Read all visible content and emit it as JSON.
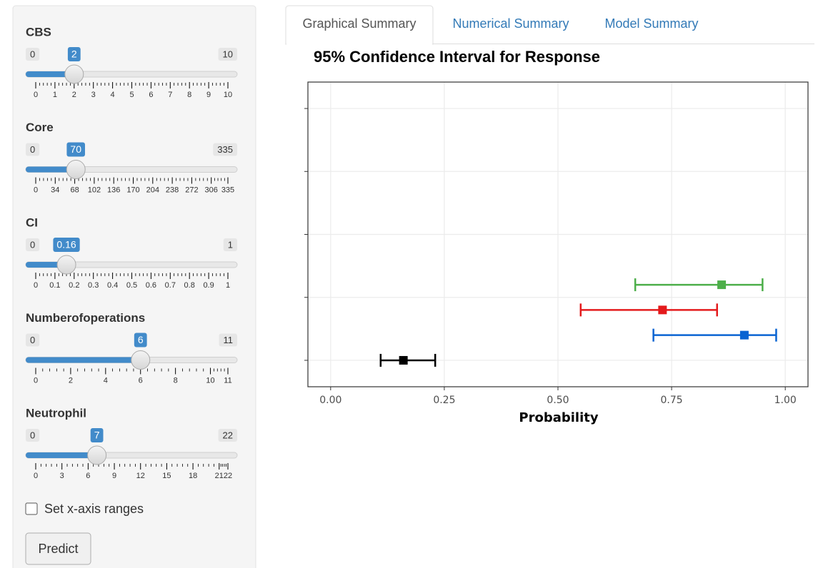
{
  "sidebar": {
    "sliders": [
      {
        "label": "CBS",
        "min": 0,
        "max": 10,
        "value": 2,
        "ticks": [
          0,
          1,
          2,
          3,
          4,
          5,
          6,
          7,
          8,
          9,
          10
        ]
      },
      {
        "label": "Core",
        "min": 0,
        "max": 335,
        "value": 70,
        "ticks": [
          0,
          34,
          68,
          102,
          136,
          170,
          204,
          238,
          272,
          306,
          335
        ]
      },
      {
        "label": "CI",
        "min": 0,
        "max": 1,
        "value": 0.16,
        "ticks": [
          0,
          0.1,
          0.2,
          0.3,
          0.4,
          0.5,
          0.6,
          0.7,
          0.8,
          0.9,
          1
        ]
      },
      {
        "label": "Numberofoperations",
        "min": 0,
        "max": 11,
        "value": 6,
        "ticks": [
          0,
          2,
          4,
          6,
          8,
          10,
          11
        ]
      },
      {
        "label": "Neutrophil",
        "min": 0,
        "max": 22,
        "value": 7,
        "ticks": [
          0,
          3,
          6,
          9,
          12,
          15,
          18,
          21,
          22
        ]
      }
    ],
    "checkbox": "Set x-axis ranges",
    "button": "Predict"
  },
  "tabs": [
    "Graphical Summary",
    "Numerical Summary",
    "Model Summary"
  ],
  "chart_data": {
    "type": "errorbar",
    "title": "95% Confidence Interval for Response",
    "x_label": "Probability",
    "xlim": [
      -0.05,
      1.05
    ],
    "xticks": [
      {
        "value": 0,
        "label": "0.00"
      },
      {
        "value": 0.25,
        "label": "0.25"
      },
      {
        "value": 0.5,
        "label": "0.50"
      },
      {
        "value": 0.75,
        "label": "0.75"
      },
      {
        "value": 1,
        "label": "1.00"
      }
    ],
    "ylim": [
      0.58,
      5.42
    ],
    "yticks": [
      1,
      2,
      3,
      4,
      5
    ],
    "grid": true,
    "series": [
      {
        "color": "#000000",
        "y": 1,
        "value": 0.16,
        "low": 0.11,
        "high": 0.23
      },
      {
        "color": "#0a64d2",
        "y": 1.4,
        "value": 0.91,
        "low": 0.71,
        "high": 0.98
      },
      {
        "color": "#e41a1c",
        "y": 1.8,
        "value": 0.73,
        "low": 0.55,
        "high": 0.85
      },
      {
        "color": "#4daf4a",
        "y": 2.2,
        "value": 0.86,
        "low": 0.67,
        "high": 0.95
      }
    ]
  }
}
